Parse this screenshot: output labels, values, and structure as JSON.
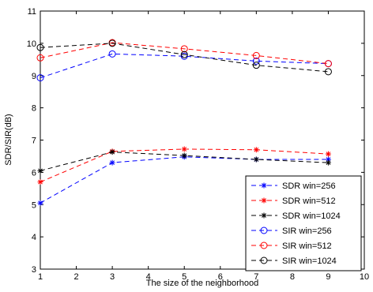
{
  "chart_data": {
    "type": "line",
    "xlabel": "The size of the neighborhood",
    "ylabel": "SDR/SIR(dB)",
    "xlim": [
      1,
      10
    ],
    "ylim": [
      3,
      11
    ],
    "xticks": [
      "1",
      "2",
      "3",
      "4",
      "5",
      "6",
      "7",
      "8",
      "9",
      "10"
    ],
    "yticks": [
      "3",
      "4",
      "5",
      "6",
      "7",
      "8",
      "9",
      "10",
      "11"
    ],
    "x": [
      1,
      3,
      5,
      7,
      9
    ],
    "grid": false,
    "legend_position": "bottom-right",
    "series": [
      {
        "name": "SDR win=256",
        "marker": "star",
        "color": "#0000ff",
        "values": [
          5.05,
          6.3,
          6.48,
          6.4,
          6.4
        ]
      },
      {
        "name": "SDR win=512",
        "marker": "star",
        "color": "#ff0000",
        "values": [
          5.7,
          6.65,
          6.72,
          6.7,
          6.57
        ]
      },
      {
        "name": "SDR win=1024",
        "marker": "star",
        "color": "#000000",
        "values": [
          6.05,
          6.63,
          6.52,
          6.4,
          6.3
        ]
      },
      {
        "name": "SIR win=256",
        "marker": "circle",
        "color": "#0000ff",
        "values": [
          8.93,
          9.67,
          9.6,
          9.45,
          9.37
        ]
      },
      {
        "name": "SIR win=512",
        "marker": "circle",
        "color": "#ff0000",
        "values": [
          9.55,
          10.02,
          9.83,
          9.62,
          9.37
        ]
      },
      {
        "name": "SIR win=1024",
        "marker": "circle",
        "color": "#000000",
        "values": [
          9.87,
          10.0,
          9.65,
          9.32,
          9.12
        ]
      }
    ]
  }
}
